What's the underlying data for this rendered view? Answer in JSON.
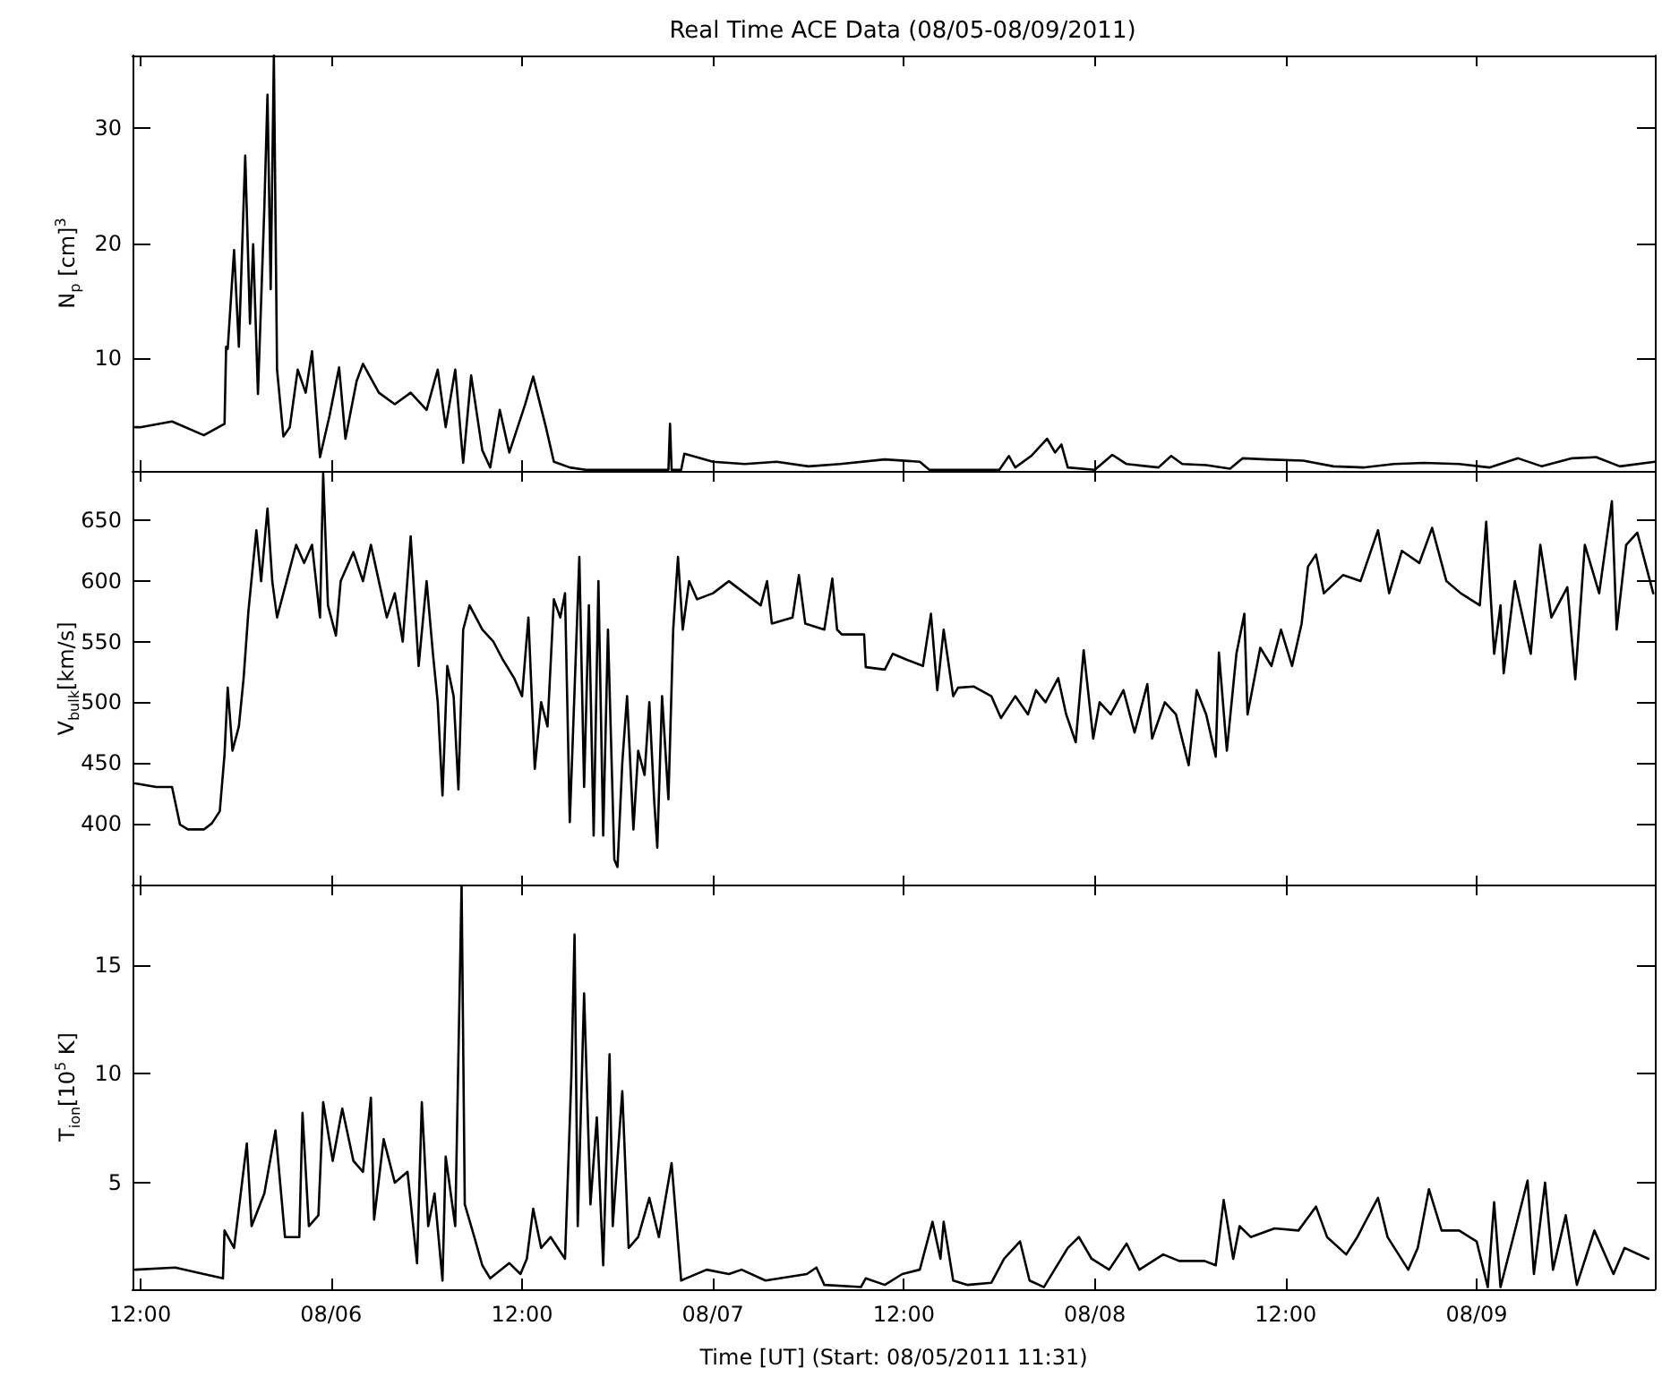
{
  "chart_data": [
    {
      "type": "line",
      "title": "Real Time ACE Data (08/05-08/09/2011)",
      "ylabel": "N$_{p}$ [cm]$^{3}$",
      "color": "#000000",
      "tick_labels": "y",
      "xlim": [
        "2011-08-05T11:31",
        "2011-08-09T11:12"
      ],
      "xticks": [
        {
          "value": "2011-08-05T12:00",
          "label": null
        },
        {
          "value": "2011-08-06T00:00",
          "label": null
        },
        {
          "value": "2011-08-06T12:00",
          "label": null
        },
        {
          "value": "2011-08-07T00:00",
          "label": null
        },
        {
          "value": "2011-08-07T12:00",
          "label": null
        },
        {
          "value": "2011-08-08T00:00",
          "label": null
        },
        {
          "value": "2011-08-08T12:00",
          "label": null
        },
        {
          "value": "2011-08-09T00:00",
          "label": null
        }
      ],
      "ylim": [
        0.2,
        36.3
      ],
      "yticks": [
        10,
        20,
        30
      ],
      "x": [
        "2011-08-05T11:42",
        "2011-08-05T12:00",
        "2011-08-05T14:00",
        "2011-08-05T16:00",
        "2011-08-05T17:18",
        "2011-08-05T17:24",
        "2011-08-05T17:30",
        "2011-08-05T17:54",
        "2011-08-05T18:12",
        "2011-08-05T18:36",
        "2011-08-05T18:54",
        "2011-08-05T19:06",
        "2011-08-05T19:24",
        "2011-08-05T19:48",
        "2011-08-05T20:00",
        "2011-08-05T20:12",
        "2011-08-05T20:24",
        "2011-08-05T20:36",
        "2011-08-05T21:00",
        "2011-08-05T21:24",
        "2011-08-05T21:54",
        "2011-08-05T22:24",
        "2011-08-05T22:48",
        "2011-08-05T23:18",
        "2011-08-05T23:54",
        "2011-08-06T00:30",
        "2011-08-06T00:54",
        "2011-08-06T01:36",
        "2011-08-06T02:00",
        "2011-08-06T03:00",
        "2011-08-06T04:00",
        "2011-08-06T05:00",
        "2011-08-06T06:00",
        "2011-08-06T06:42",
        "2011-08-06T07:12",
        "2011-08-06T07:48",
        "2011-08-06T08:18",
        "2011-08-06T08:48",
        "2011-08-06T09:30",
        "2011-08-06T10:00",
        "2011-08-06T10:36",
        "2011-08-06T11:12",
        "2011-08-06T12:12",
        "2011-08-06T12:42",
        "2011-08-06T13:30",
        "2011-08-06T14:00",
        "2011-08-06T15:00",
        "2011-08-06T16:00",
        "2011-08-06T18:00",
        "2011-08-06T20:00",
        "2011-08-06T21:12",
        "2011-08-06T21:18",
        "2011-08-06T21:24",
        "2011-08-06T22:00",
        "2011-08-06T22:12",
        "2011-08-07T00:00",
        "2011-08-07T02:00",
        "2011-08-07T04:00",
        "2011-08-07T06:00",
        "2011-08-07T08:00",
        "2011-08-07T10:48",
        "2011-08-07T13:00",
        "2011-08-07T13:36",
        "2011-08-07T16:00",
        "2011-08-07T18:00",
        "2011-08-07T18:36",
        "2011-08-07T19:00",
        "2011-08-07T20:00",
        "2011-08-07T21:00",
        "2011-08-07T21:30",
        "2011-08-07T21:54",
        "2011-08-07T22:18",
        "2011-08-08T00:00",
        "2011-08-08T01:06",
        "2011-08-08T02:00",
        "2011-08-08T04:00",
        "2011-08-08T04:48",
        "2011-08-08T05:30",
        "2011-08-08T07:00",
        "2011-08-08T08:30",
        "2011-08-08T09:18",
        "2011-08-08T10:48",
        "2011-08-08T13:06",
        "2011-08-08T15:00",
        "2011-08-08T16:54",
        "2011-08-08T18:48",
        "2011-08-08T20:42",
        "2011-08-08T22:54",
        "2011-08-09T00:48",
        "2011-08-09T02:36",
        "2011-08-09T04:06",
        "2011-08-09T06:00",
        "2011-08-09T07:30",
        "2011-08-09T09:00",
        "2011-08-09T11:12"
      ],
      "values": [
        4.0,
        4.0,
        4.5,
        3.3,
        4.3,
        11,
        10.8,
        19.4,
        11,
        27.6,
        13,
        19.9,
        6.9,
        23,
        32.9,
        16,
        36.3,
        9,
        3.2,
        4,
        9,
        7,
        10.6,
        1.4,
        5,
        9.2,
        3,
        8,
        9.5,
        7,
        6,
        7,
        5.5,
        9,
        4,
        9,
        0.9,
        8.5,
        2,
        0.5,
        5.5,
        1.8,
        6,
        8.4,
        4,
        1,
        0.5,
        0.3,
        0.3,
        0.3,
        0.3,
        4.3,
        0.3,
        0.3,
        1.7,
        1.0,
        0.8,
        1.0,
        0.6,
        0.8,
        1.2,
        1.0,
        0.3,
        0.3,
        0.3,
        1.5,
        0.5,
        1.5,
        3,
        1.8,
        2.5,
        0.5,
        0.3,
        1.6,
        0.8,
        0.5,
        1.5,
        0.8,
        0.7,
        0.4,
        1.3,
        1.2,
        1.1,
        0.6,
        0.5,
        0.8,
        0.9,
        0.8,
        0.5,
        1.3,
        0.6,
        1.3,
        1.4,
        0.6,
        1.0
      ]
    },
    {
      "type": "line",
      "ylabel": "V$_{bulk}$[km/s]",
      "color": "#000000",
      "tick_labels": "y",
      "xlim": [
        "2011-08-05T11:31",
        "2011-08-09T11:12"
      ],
      "xticks": [
        {
          "value": "2011-08-05T12:00",
          "label": null
        },
        {
          "value": "2011-08-06T00:00",
          "label": null
        },
        {
          "value": "2011-08-06T12:00",
          "label": null
        },
        {
          "value": "2011-08-07T00:00",
          "label": null
        },
        {
          "value": "2011-08-07T12:00",
          "label": null
        },
        {
          "value": "2011-08-08T00:00",
          "label": null
        },
        {
          "value": "2011-08-08T12:00",
          "label": null
        },
        {
          "value": "2011-08-09T00:00",
          "label": null
        }
      ],
      "ylim": [
        348,
        691
      ],
      "yticks": [
        400,
        450,
        500,
        550,
        600,
        650
      ],
      "x": [
        "2011-08-05T11:42",
        "2011-08-05T13:00",
        "2011-08-05T14:00",
        "2011-08-05T14:30",
        "2011-08-05T15:00",
        "2011-08-05T16:00",
        "2011-08-05T16:30",
        "2011-08-05T17:00",
        "2011-08-05T17:18",
        "2011-08-05T17:30",
        "2011-08-05T17:48",
        "2011-08-05T18:12",
        "2011-08-05T18:30",
        "2011-08-05T18:48",
        "2011-08-05T19:18",
        "2011-08-05T19:36",
        "2011-08-05T20:00",
        "2011-08-05T20:18",
        "2011-08-05T20:36",
        "2011-08-05T21:12",
        "2011-08-05T21:48",
        "2011-08-05T22:18",
        "2011-08-05T22:48",
        "2011-08-05T23:18",
        "2011-08-05T23:30",
        "2011-08-05T23:48",
        "2011-08-06T00:18",
        "2011-08-06T00:36",
        "2011-08-06T01:24",
        "2011-08-06T02:00",
        "2011-08-06T02:30",
        "2011-08-06T03:00",
        "2011-08-06T03:30",
        "2011-08-06T04:00",
        "2011-08-06T04:30",
        "2011-08-06T05:00",
        "2011-08-06T05:30",
        "2011-08-06T06:00",
        "2011-08-06T06:24",
        "2011-08-06T06:42",
        "2011-08-06T07:00",
        "2011-08-06T07:18",
        "2011-08-06T07:42",
        "2011-08-06T08:00",
        "2011-08-06T08:18",
        "2011-08-06T08:42",
        "2011-08-06T09:30",
        "2011-08-06T10:12",
        "2011-08-06T10:48",
        "2011-08-06T11:30",
        "2011-08-06T12:00",
        "2011-08-06T12:24",
        "2011-08-06T12:48",
        "2011-08-06T13:12",
        "2011-08-06T13:36",
        "2011-08-06T14:00",
        "2011-08-06T14:24",
        "2011-08-06T14:42",
        "2011-08-06T15:00",
        "2011-08-06T15:18",
        "2011-08-06T15:36",
        "2011-08-06T15:54",
        "2011-08-06T16:12",
        "2011-08-06T16:30",
        "2011-08-06T16:48",
        "2011-08-06T17:06",
        "2011-08-06T17:24",
        "2011-08-06T17:48",
        "2011-08-06T18:00",
        "2011-08-06T18:18",
        "2011-08-06T18:36",
        "2011-08-06T19:00",
        "2011-08-06T19:18",
        "2011-08-06T19:42",
        "2011-08-06T20:00",
        "2011-08-06T20:18",
        "2011-08-06T20:30",
        "2011-08-06T20:48",
        "2011-08-06T21:12",
        "2011-08-06T21:30",
        "2011-08-06T21:48",
        "2011-08-06T22:06",
        "2011-08-06T22:30",
        "2011-08-06T23:00",
        "2011-08-07T00:00",
        "2011-08-07T01:00",
        "2011-08-07T02:00",
        "2011-08-07T03:00",
        "2011-08-07T03:24",
        "2011-08-07T03:42",
        "2011-08-07T05:00",
        "2011-08-07T05:24",
        "2011-08-07T05:48",
        "2011-08-07T07:00",
        "2011-08-07T07:30",
        "2011-08-07T07:48",
        "2011-08-07T08:06",
        "2011-08-07T09:30",
        "2011-08-07T09:36",
        "2011-08-07T10:48",
        "2011-08-07T11:18",
        "2011-08-07T12:12",
        "2011-08-07T13:12",
        "2011-08-07T13:42",
        "2011-08-07T14:06",
        "2011-08-07T14:30",
        "2011-08-07T15:06",
        "2011-08-07T15:24",
        "2011-08-07T16:24",
        "2011-08-07T17:30",
        "2011-08-07T18:06",
        "2011-08-07T19:00",
        "2011-08-07T19:48",
        "2011-08-07T20:18",
        "2011-08-07T20:54",
        "2011-08-07T21:42",
        "2011-08-07T22:12",
        "2011-08-07T22:48",
        "2011-08-07T23:18",
        "2011-08-07T23:54",
        "2011-08-08T00:18",
        "2011-08-08T01:00",
        "2011-08-08T01:48",
        "2011-08-08T02:30",
        "2011-08-08T03:18",
        "2011-08-08T03:36",
        "2011-08-08T04:24",
        "2011-08-08T05:06",
        "2011-08-08T05:54",
        "2011-08-08T06:24",
        "2011-08-08T07:00",
        "2011-08-08T07:36",
        "2011-08-08T07:48",
        "2011-08-08T08:18",
        "2011-08-08T08:54",
        "2011-08-08T09:24",
        "2011-08-08T09:36",
        "2011-08-08T10:24",
        "2011-08-08T11:06",
        "2011-08-08T11:42",
        "2011-08-08T12:24",
        "2011-08-08T13:00",
        "2011-08-08T13:24",
        "2011-08-08T13:54",
        "2011-08-08T14:24",
        "2011-08-08T15:36",
        "2011-08-08T16:42",
        "2011-08-08T17:48",
        "2011-08-08T18:30",
        "2011-08-08T19:18",
        "2011-08-08T20:24",
        "2011-08-08T21:12",
        "2011-08-08T22:06",
        "2011-08-08T23:00",
        "2011-08-09T00:12",
        "2011-08-09T00:36",
        "2011-08-09T01:06",
        "2011-08-09T01:30",
        "2011-08-09T01:42",
        "2011-08-09T02:24",
        "2011-08-09T03:24",
        "2011-08-09T04:00",
        "2011-08-09T04:42",
        "2011-08-09T05:42",
        "2011-08-09T06:12",
        "2011-08-09T06:48",
        "2011-08-09T07:42",
        "2011-08-09T08:30",
        "2011-08-09T08:48",
        "2011-08-09T09:24",
        "2011-08-09T10:06",
        "2011-08-09T10:42",
        "2011-08-09T11:06"
      ],
      "values": [
        433,
        430,
        430,
        399,
        395,
        395,
        400,
        410,
        457,
        512,
        460,
        480,
        520,
        575,
        642,
        600,
        660,
        600,
        570,
        600,
        630,
        615,
        630,
        570,
        689,
        580,
        555,
        600,
        624,
        600,
        630,
        600,
        570,
        590,
        550,
        637,
        530,
        600,
        540,
        500,
        423,
        530,
        505,
        428,
        560,
        580,
        560,
        550,
        535,
        520,
        505,
        570,
        445,
        500,
        480,
        585,
        570,
        590,
        401,
        510,
        620,
        430,
        580,
        390,
        600,
        390,
        560,
        370,
        364,
        450,
        505,
        395,
        460,
        440,
        500,
        420,
        380,
        505,
        420,
        560,
        620,
        560,
        600,
        585,
        590,
        600,
        590,
        580,
        600,
        565,
        570,
        605,
        565,
        560,
        602,
        560,
        556,
        556,
        529,
        527,
        540,
        535,
        530,
        573,
        510,
        560,
        505,
        512,
        513,
        505,
        487,
        505,
        490,
        510,
        500,
        520,
        490,
        467,
        543,
        470,
        500,
        490,
        510,
        475,
        515,
        470,
        500,
        490,
        448,
        510,
        490,
        455,
        541,
        460,
        540,
        573,
        490,
        545,
        530,
        560,
        530,
        565,
        612,
        622,
        590,
        605,
        600,
        642,
        590,
        625,
        615,
        644,
        600,
        590,
        580,
        649,
        540,
        580,
        524,
        600,
        540,
        630,
        570,
        595,
        519,
        630,
        590,
        666,
        560,
        630,
        640,
        610,
        590
      ]
    },
    {
      "type": "line",
      "ylabel": "T$_{ion}$[10$^{5}$ K]",
      "xlabel": "Time [UT] (Start: 08/05/2011 11:31)",
      "color": "#000000",
      "xlim": [
        "2011-08-05T11:31",
        "2011-08-09T11:12"
      ],
      "xticks": [
        {
          "value": "2011-08-05T12:00",
          "label": "12:00"
        },
        {
          "value": "2011-08-06T00:00",
          "label": "08/06"
        },
        {
          "value": "2011-08-06T12:00",
          "label": "12:00"
        },
        {
          "value": "2011-08-07T00:00",
          "label": "08/07"
        },
        {
          "value": "2011-08-07T12:00",
          "label": "12:00"
        },
        {
          "value": "2011-08-08T00:00",
          "label": "08/08"
        },
        {
          "value": "2011-08-08T12:00",
          "label": "12:00"
        },
        {
          "value": "2011-08-09T00:00",
          "label": "08/09"
        }
      ],
      "ylim": [
        0.1,
        18.7
      ],
      "yticks": [
        5,
        10,
        15
      ],
      "x": [
        "2011-08-05T11:42",
        "2011-08-05T14:12",
        "2011-08-05T16:00",
        "2011-08-05T17:12",
        "2011-08-05T17:18",
        "2011-08-05T17:54",
        "2011-08-05T18:42",
        "2011-08-05T19:00",
        "2011-08-05T19:48",
        "2011-08-05T20:30",
        "2011-08-05T21:06",
        "2011-08-05T22:00",
        "2011-08-05T22:12",
        "2011-08-05T22:36",
        "2011-08-05T23:12",
        "2011-08-05T23:30",
        "2011-08-06T00:06",
        "2011-08-06T00:42",
        "2011-08-06T01:24",
        "2011-08-06T02:00",
        "2011-08-06T02:30",
        "2011-08-06T02:42",
        "2011-08-06T03:18",
        "2011-08-06T04:00",
        "2011-08-06T04:48",
        "2011-08-06T05:24",
        "2011-08-06T05:42",
        "2011-08-06T06:06",
        "2011-08-06T06:30",
        "2011-08-06T07:00",
        "2011-08-06T07:12",
        "2011-08-06T07:48",
        "2011-08-06T08:12",
        "2011-08-06T08:24",
        "2011-08-06T09:00",
        "2011-08-06T09:30",
        "2011-08-06T10:00",
        "2011-08-06T11:12",
        "2011-08-06T11:54",
        "2011-08-06T12:18",
        "2011-08-06T12:42",
        "2011-08-06T13:12",
        "2011-08-06T13:48",
        "2011-08-06T14:42",
        "2011-08-06T15:06",
        "2011-08-06T15:18",
        "2011-08-06T15:30",
        "2011-08-06T15:54",
        "2011-08-06T16:18",
        "2011-08-06T16:42",
        "2011-08-06T17:06",
        "2011-08-06T17:30",
        "2011-08-06T17:42",
        "2011-08-06T18:18",
        "2011-08-06T18:42",
        "2011-08-06T19:18",
        "2011-08-06T20:00",
        "2011-08-06T20:36",
        "2011-08-06T21:24",
        "2011-08-06T22:00",
        "2011-08-06T23:36",
        "2011-08-07T01:00",
        "2011-08-07T01:48",
        "2011-08-07T03:18",
        "2011-08-07T05:54",
        "2011-08-07T06:30",
        "2011-08-07T07:00",
        "2011-08-07T09:18",
        "2011-08-07T09:36",
        "2011-08-07T10:48",
        "2011-08-07T11:54",
        "2011-08-07T13:00",
        "2011-08-07T13:48",
        "2011-08-07T14:18",
        "2011-08-07T14:30",
        "2011-08-07T15:06",
        "2011-08-07T16:00",
        "2011-08-07T17:30",
        "2011-08-07T18:18",
        "2011-08-07T19:18",
        "2011-08-07T19:54",
        "2011-08-07T20:48",
        "2011-08-07T22:18",
        "2011-08-07T23:00",
        "2011-08-07T23:48",
        "2011-08-08T00:54",
        "2011-08-08T02:00",
        "2011-08-08T02:48",
        "2011-08-08T04:18",
        "2011-08-08T05:18",
        "2011-08-08T06:54",
        "2011-08-08T07:36",
        "2011-08-08T08:06",
        "2011-08-08T08:42",
        "2011-08-08T09:06",
        "2011-08-08T09:48",
        "2011-08-08T11:18",
        "2011-08-08T12:48",
        "2011-08-08T13:54",
        "2011-08-08T14:36",
        "2011-08-08T15:48",
        "2011-08-08T16:30",
        "2011-08-08T17:48",
        "2011-08-08T18:24",
        "2011-08-08T19:42",
        "2011-08-08T20:18",
        "2011-08-08T21:00",
        "2011-08-08T21:48",
        "2011-08-08T22:54",
        "2011-08-09T00:00",
        "2011-08-09T00:42",
        "2011-08-09T01:06",
        "2011-08-09T01:30",
        "2011-08-09T02:12",
        "2011-08-09T03:12",
        "2011-08-09T03:36",
        "2011-08-09T04:18",
        "2011-08-09T04:48",
        "2011-08-09T05:36",
        "2011-08-09T06:18",
        "2011-08-09T07:24",
        "2011-08-09T08:36",
        "2011-08-09T09:18",
        "2011-08-09T10:48"
      ],
      "values": [
        1.0,
        1.1,
        0.8,
        0.6,
        2.8,
        2.0,
        6.8,
        3,
        4.5,
        7.4,
        2.5,
        2.5,
        8.2,
        3,
        3.5,
        8.7,
        6,
        8.4,
        6,
        5.5,
        8.9,
        3.3,
        7,
        5,
        5.5,
        1.3,
        8.7,
        3,
        4.5,
        0.5,
        6.2,
        3,
        18.7,
        4,
        2.5,
        1.2,
        0.6,
        1.3,
        0.8,
        1.5,
        3.8,
        2.0,
        2.5,
        1.5,
        9.9,
        16.4,
        3,
        13.7,
        4,
        8,
        1.2,
        10.9,
        3,
        9.2,
        2,
        2.5,
        4.3,
        2.5,
        5.9,
        0.5,
        1.0,
        0.8,
        1.0,
        0.5,
        0.8,
        1.1,
        0.3,
        0.2,
        0.6,
        0.3,
        0.8,
        1.0,
        3.2,
        1.5,
        3.2,
        0.5,
        0.3,
        0.4,
        1.5,
        2.3,
        0.5,
        0.2,
        2.0,
        2.5,
        1.5,
        1.0,
        2.2,
        1.0,
        1.7,
        1.4,
        1.4,
        1.2,
        4.2,
        1.5,
        3,
        2.5,
        2.9,
        2.8,
        3.9,
        2.5,
        1.7,
        2.5,
        4.3,
        2.5,
        1.0,
        2,
        4.7,
        2.8,
        2.8,
        2.3,
        0.2,
        4.1,
        0.2,
        2.2,
        5.1,
        0.8,
        5.0,
        1.0,
        3.5,
        0.3,
        2.8,
        0.8,
        2.0,
        1.5
      ]
    }
  ]
}
